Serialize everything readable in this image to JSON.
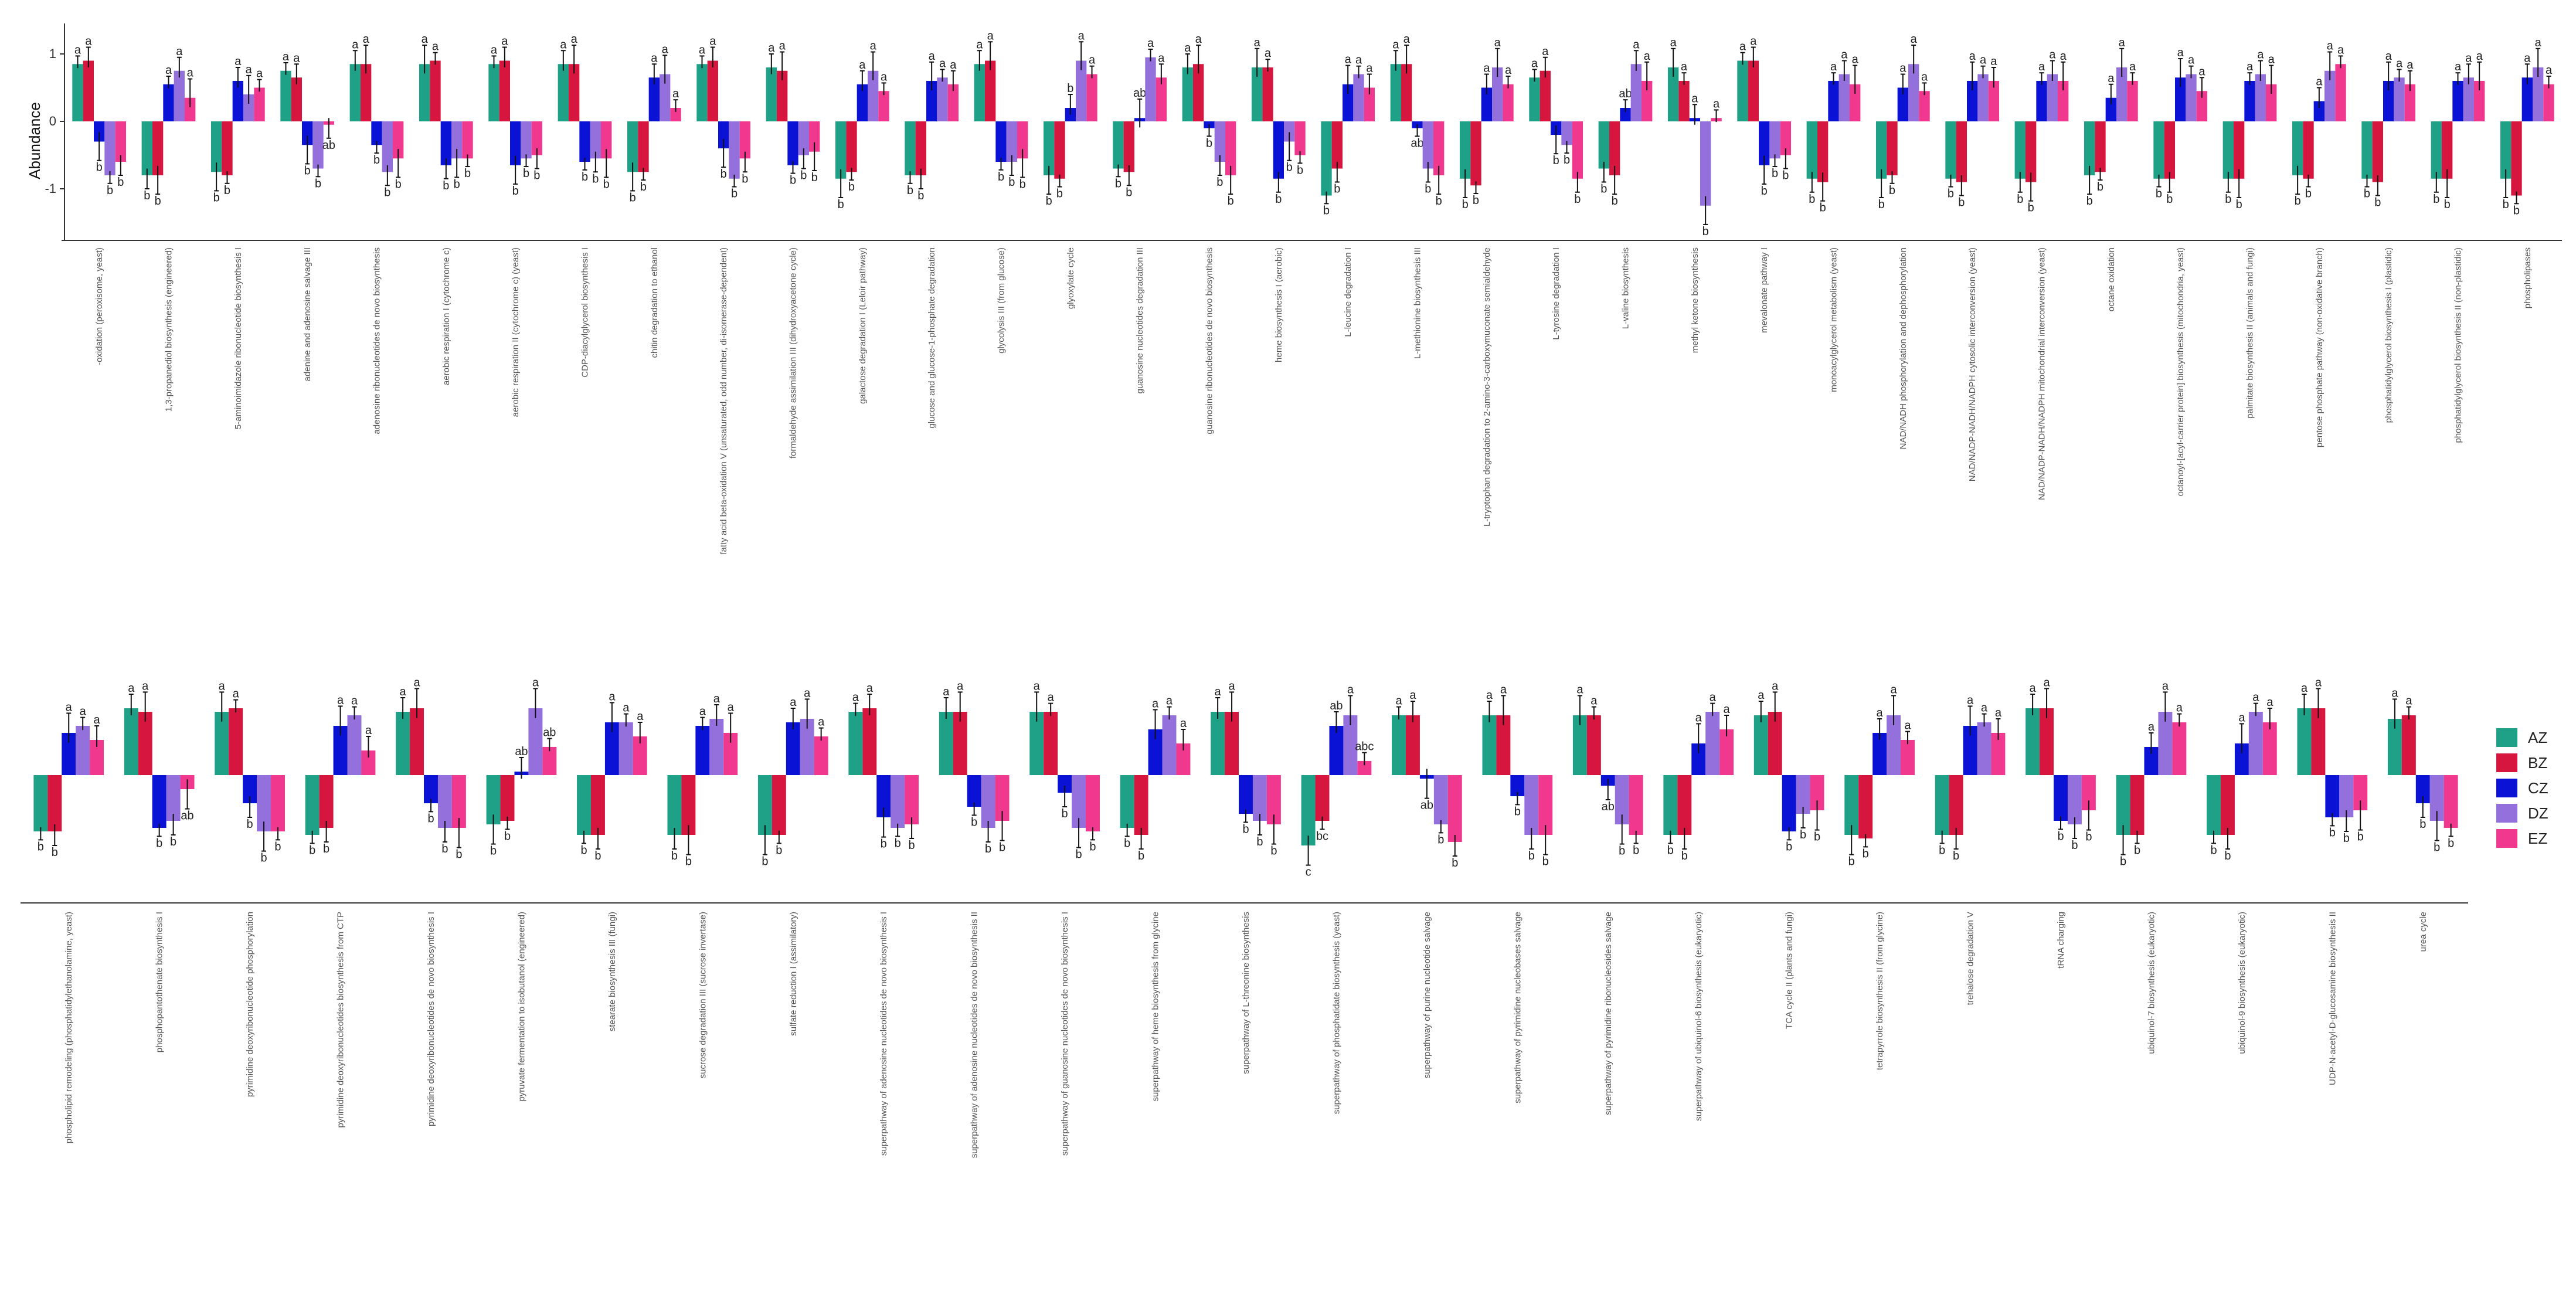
{
  "colors": {
    "AZ": "#1fa188",
    "BZ": "#d6163e",
    "CZ": "#0a12d6",
    "DZ": "#9370db",
    "EZ": "#f0398e"
  },
  "chart_data": {
    "type": "bar",
    "ylabel": "Abundance",
    "ylim": [
      -1.8,
      1.5
    ],
    "yticks": [
      -1,
      0,
      1
    ],
    "legend": {
      "position": "right",
      "items": [
        "AZ",
        "BZ",
        "CZ",
        "DZ",
        "EZ"
      ]
    },
    "series_names": [
      "AZ",
      "BZ",
      "CZ",
      "DZ",
      "EZ"
    ],
    "panels": [
      {
        "categories": [
          "-oxidation (peroxisome, yeast)",
          "1,3-propanediol biosynthesis (engineered)",
          "5-aminoimidazole ribonucleotide biosynthesis I",
          "adenine and adenosine salvage III",
          "adenosine ribonucleotides de novo biosynthesis",
          "aerobic respiration I (cytochrome c)",
          "aerobic respiration II (cytochrome c) (yeast)",
          "CDP-diacylglycerol biosynthesis I",
          "chitin degradation to ethanol",
          "fatty acid beta-oxidation V (unsaturated, odd number, di-isomerase-dependent)",
          "formaldehyde assimilation III (dihydroxyacetone cycle)",
          "galactose degradation I (Leloir pathway)",
          "glucose and glucose-1-phosphate degradation",
          "glycolysis III (from glucose)",
          "glyoxylate cycle",
          "guanosine nucleotides degradation III",
          "guanosine ribonucleotides de novo biosynthesis",
          "heme biosynthesis I (aerobic)",
          "L-leucine degradation I",
          "L-methionine biosynthesis III",
          "L-tryptophan degradation to 2-amino-3-carboxymuconate semialdehyde",
          "L-tyrosine degradation I",
          "L-valine biosynthesis",
          "methyl ketone biosynthesis",
          "mevalonate pathway I",
          "monoacylglycerol metabolism (yeast)",
          "NAD/NADH phosphorylation and dephosphorylation",
          "NAD/NADP-NADH/NADPH cytosolic interconversion (yeast)",
          "NAD/NADP-NADH/NADPH mitochondrial interconversion (yeast)",
          "octane oxidation",
          "octanoyl-[acyl-carrier protein] biosynthesis (mitochondria, yeast)",
          "palmitate biosynthesis II (animals and fungi)",
          "pentose phosphate pathway (non-oxidative branch)",
          "phosphatidylglycerol biosynthesis I (plastidic)",
          "phosphatidylglycerol biosynthesis II (non-plastidic)",
          "phospholipases"
        ],
        "values": [
          [
            0.85,
            0.9,
            -0.3,
            -0.8,
            -0.6
          ],
          [
            -0.8,
            -0.8,
            0.55,
            0.75,
            0.35
          ],
          [
            -0.75,
            -0.8,
            0.6,
            0.4,
            0.5
          ],
          [
            0.75,
            0.65,
            -0.35,
            -0.7,
            -0.05
          ],
          [
            0.85,
            0.85,
            -0.35,
            -0.75,
            -0.55
          ],
          [
            0.85,
            0.9,
            -0.65,
            -0.55,
            -0.55
          ],
          [
            0.85,
            0.9,
            -0.65,
            -0.55,
            -0.5
          ],
          [
            0.85,
            0.85,
            -0.6,
            -0.55,
            -0.55
          ],
          [
            -0.75,
            -0.75,
            0.65,
            0.7,
            0.2
          ],
          [
            0.85,
            0.9,
            -0.4,
            -0.85,
            -0.55
          ],
          [
            0.8,
            0.75,
            -0.65,
            -0.5,
            -0.45
          ],
          [
            -0.85,
            -0.75,
            0.55,
            0.75,
            0.45
          ],
          [
            -0.8,
            -0.8,
            0.6,
            0.65,
            0.55
          ],
          [
            0.85,
            0.9,
            -0.6,
            -0.6,
            -0.55
          ],
          [
            -0.8,
            -0.85,
            0.2,
            0.9,
            0.7
          ],
          [
            -0.7,
            -0.75,
            0.05,
            0.95,
            0.65
          ],
          [
            0.8,
            0.85,
            -0.1,
            -0.6,
            -0.8
          ],
          [
            0.8,
            0.8,
            -0.85,
            -0.3,
            -0.5
          ],
          [
            -1.1,
            -0.7,
            0.55,
            0.7,
            0.5
          ],
          [
            0.85,
            0.85,
            -0.1,
            -0.7,
            -0.8
          ],
          [
            -0.85,
            -0.95,
            0.5,
            0.8,
            0.55
          ],
          [
            0.65,
            0.75,
            -0.2,
            -0.35,
            -0.85
          ],
          [
            -0.7,
            -0.8,
            0.2,
            0.85,
            0.6
          ],
          [
            0.8,
            0.6,
            0.05,
            -1.25,
            0.05
          ],
          [
            0.9,
            0.9,
            -0.65,
            -0.55,
            -0.5
          ],
          [
            -0.85,
            -0.9,
            0.6,
            0.7,
            0.55
          ],
          [
            -0.85,
            -0.8,
            0.5,
            0.85,
            0.45
          ],
          [
            -0.85,
            -0.9,
            0.6,
            0.7,
            0.6
          ],
          [
            -0.85,
            -0.9,
            0.6,
            0.7,
            0.6
          ],
          [
            -0.8,
            -0.75,
            0.35,
            0.8,
            0.6
          ],
          [
            -0.85,
            -0.85,
            0.65,
            0.7,
            0.45
          ],
          [
            -0.85,
            -0.85,
            0.6,
            0.7,
            0.55
          ],
          [
            -0.8,
            -0.85,
            0.3,
            0.75,
            0.85
          ],
          [
            -0.85,
            -0.9,
            0.6,
            0.65,
            0.55
          ],
          [
            -0.85,
            -0.85,
            0.6,
            0.65,
            0.6
          ],
          [
            -0.85,
            -1.1,
            0.65,
            0.8,
            0.55
          ]
        ],
        "labels": [
          [
            "a",
            "a",
            "b",
            "b",
            "b"
          ],
          [
            "b",
            "b",
            "a",
            "a",
            "a"
          ],
          [
            "b",
            "b",
            "a",
            "a",
            "a"
          ],
          [
            "a",
            "a",
            "b",
            "b",
            "ab"
          ],
          [
            "a",
            "a",
            "b",
            "b",
            "b"
          ],
          [
            "a",
            "a",
            "b",
            "b",
            "b"
          ],
          [
            "a",
            "a",
            "b",
            "b",
            "b"
          ],
          [
            "a",
            "a",
            "b",
            "b",
            "b"
          ],
          [
            "b",
            "b",
            "a",
            "a",
            "a"
          ],
          [
            "a",
            "a",
            "b",
            "b",
            "b"
          ],
          [
            "a",
            "a",
            "b",
            "b",
            "b"
          ],
          [
            "b",
            "b",
            "a",
            "a",
            "a"
          ],
          [
            "b",
            "b",
            "a",
            "a",
            "a"
          ],
          [
            "a",
            "a",
            "b",
            "b",
            "b"
          ],
          [
            "b",
            "b",
            "b",
            "a",
            "a"
          ],
          [
            "b",
            "b",
            "ab",
            "a",
            "a"
          ],
          [
            "a",
            "a",
            "b",
            "b",
            "b"
          ],
          [
            "a",
            "a",
            "b",
            "b",
            "b"
          ],
          [
            "b",
            "b",
            "a",
            "a",
            "a"
          ],
          [
            "a",
            "a",
            "ab",
            "b",
            "b"
          ],
          [
            "b",
            "b",
            "a",
            "a",
            "a"
          ],
          [
            "a",
            "a",
            "b",
            "b",
            "b"
          ],
          [
            "b",
            "b",
            "ab",
            "a",
            "a"
          ],
          [
            "a",
            "a",
            "a",
            "b",
            "a"
          ],
          [
            "a",
            "a",
            "b",
            "b",
            "b"
          ],
          [
            "b",
            "b",
            "a",
            "a",
            "a"
          ],
          [
            "b",
            "b",
            "a",
            "a",
            "a"
          ],
          [
            "b",
            "b",
            "a",
            "a",
            "a"
          ],
          [
            "b",
            "b",
            "a",
            "a",
            "a"
          ],
          [
            "b",
            "b",
            "a",
            "a",
            "a"
          ],
          [
            "b",
            "b",
            "a",
            "a",
            "a"
          ],
          [
            "b",
            "b",
            "a",
            "a",
            "a"
          ],
          [
            "b",
            "b",
            "a",
            "a",
            "a"
          ],
          [
            "b",
            "b",
            "a",
            "a",
            "a"
          ],
          [
            "b",
            "b",
            "a",
            "a",
            "a"
          ],
          [
            "b",
            "b",
            "a",
            "a",
            "a"
          ]
        ]
      },
      {
        "categories": [
          "phospholipid remodeling (phosphatidylethanolamine, yeast)",
          "phosphopantothenate biosynthesis I",
          "pyrimidine deoxyribonucleotide phosphorylation",
          "pyrimidine deoxyribonucleotides biosynthesis from CTP",
          "pyrimidine deoxyribonucleotides de novo biosynthesis I",
          "pyruvate fermentation to isobutanol (engineered)",
          "stearate biosynthesis III (fungi)",
          "sucrose degradation III (sucrose invertase)",
          "sulfate reduction I (assimilatory)",
          "superpathway of adenosine nucleotides de novo biosynthesis I",
          "superpathway of adenosine nucleotides de novo biosynthesis II",
          "superpathway of guanosine nucleotides de novo biosynthesis I",
          "superpathway of heme biosynthesis from glycine",
          "superpathway of L-threonine biosynthesis",
          "superpathway of phosphatidate biosynthesis (yeast)",
          "superpathway of purine nucleotide salvage",
          "superpathway of pyrimidine nucleobases salvage",
          "superpathway of pyrimidine ribonucleosides salvage",
          "superpathway of ubiquinol-6 biosynthesis (eukaryotic)",
          "TCA cycle II (plants and fungi)",
          "tetrapyrrole biosynthesis II (from glycine)",
          "trehalose degradation V",
          "tRNA charging",
          "ubiquinol-7 biosynthesis (eukaryotic)",
          "ubiquinol-9 biosynthesis (eukaryotic)",
          "UDP-N-acetyl-D-glucosamine biosynthesis II",
          "urea cycle"
        ],
        "values": [
          [
            -0.8,
            -0.8,
            0.6,
            0.7,
            0.5
          ],
          [
            0.95,
            0.9,
            -0.75,
            -0.65,
            -0.2
          ],
          [
            0.9,
            0.95,
            -0.4,
            -0.8,
            -0.8
          ],
          [
            -0.85,
            -0.75,
            0.7,
            0.85,
            0.35
          ],
          [
            0.9,
            0.95,
            -0.4,
            -0.75,
            -0.75
          ],
          [
            -0.7,
            -0.65,
            0.05,
            0.95,
            0.4
          ],
          [
            -0.85,
            -0.85,
            0.75,
            0.75,
            0.55
          ],
          [
            -0.85,
            -0.85,
            0.7,
            0.8,
            0.6
          ],
          [
            -0.85,
            -0.85,
            0.75,
            0.8,
            0.55
          ],
          [
            0.9,
            0.95,
            -0.6,
            -0.75,
            -0.7
          ],
          [
            0.9,
            0.9,
            -0.45,
            -0.75,
            -0.65
          ],
          [
            0.9,
            0.9,
            -0.25,
            -0.75,
            -0.8
          ],
          [
            -0.75,
            -0.85,
            0.65,
            0.85,
            0.45
          ],
          [
            0.9,
            0.9,
            -0.55,
            -0.65,
            -0.7
          ],
          [
            -1.0,
            -0.65,
            0.7,
            0.85,
            0.2
          ],
          [
            0.85,
            0.85,
            -0.05,
            -0.7,
            -0.95
          ],
          [
            0.85,
            0.85,
            -0.3,
            -0.85,
            -0.85
          ],
          [
            0.85,
            0.85,
            -0.15,
            -0.7,
            -0.85
          ],
          [
            -0.85,
            -0.85,
            0.45,
            0.9,
            0.65
          ],
          [
            0.85,
            0.9,
            -0.8,
            -0.55,
            -0.5
          ],
          [
            -0.85,
            -0.9,
            0.6,
            0.85,
            0.5
          ],
          [
            -0.85,
            -0.85,
            0.7,
            0.75,
            0.6
          ],
          [
            0.95,
            0.95,
            -0.65,
            -0.7,
            -0.5
          ],
          [
            -0.85,
            -0.85,
            0.4,
            0.9,
            0.75
          ],
          [
            -0.85,
            -0.85,
            0.45,
            0.9,
            0.75
          ],
          [
            0.95,
            0.95,
            -0.6,
            -0.6,
            -0.5
          ],
          [
            0.8,
            0.85,
            -0.4,
            -0.65,
            -0.75
          ]
        ],
        "labels": [
          [
            "b",
            "b",
            "a",
            "a",
            "a"
          ],
          [
            "a",
            "a",
            "b",
            "b",
            "ab"
          ],
          [
            "a",
            "a",
            "b",
            "b",
            "b"
          ],
          [
            "b",
            "b",
            "a",
            "a",
            "a"
          ],
          [
            "a",
            "a",
            "b",
            "b",
            "b"
          ],
          [
            "b",
            "b",
            "ab",
            "a",
            "ab"
          ],
          [
            "b",
            "b",
            "a",
            "a",
            "a"
          ],
          [
            "b",
            "b",
            "a",
            "a",
            "a"
          ],
          [
            "b",
            "b",
            "a",
            "a",
            "a"
          ],
          [
            "a",
            "a",
            "b",
            "b",
            "b"
          ],
          [
            "a",
            "a",
            "b",
            "b",
            "b"
          ],
          [
            "a",
            "a",
            "b",
            "b",
            "b"
          ],
          [
            "b",
            "b",
            "a",
            "a",
            "a"
          ],
          [
            "a",
            "a",
            "b",
            "b",
            "b"
          ],
          [
            "c",
            "bc",
            "ab",
            "a",
            "abc"
          ],
          [
            "a",
            "a",
            "ab",
            "b",
            "b"
          ],
          [
            "a",
            "a",
            "b",
            "b",
            "b"
          ],
          [
            "a",
            "a",
            "ab",
            "b",
            "b"
          ],
          [
            "b",
            "b",
            "a",
            "a",
            "a"
          ],
          [
            "a",
            "a",
            "b",
            "b",
            "b"
          ],
          [
            "b",
            "b",
            "a",
            "a",
            "a"
          ],
          [
            "b",
            "b",
            "a",
            "a",
            "a"
          ],
          [
            "a",
            "a",
            "b",
            "b",
            "b"
          ],
          [
            "b",
            "b",
            "a",
            "a",
            "a"
          ],
          [
            "b",
            "b",
            "a",
            "a",
            "a"
          ],
          [
            "a",
            "a",
            "b",
            "b",
            "b"
          ],
          [
            "a",
            "a",
            "b",
            "b",
            "b"
          ]
        ]
      }
    ]
  }
}
